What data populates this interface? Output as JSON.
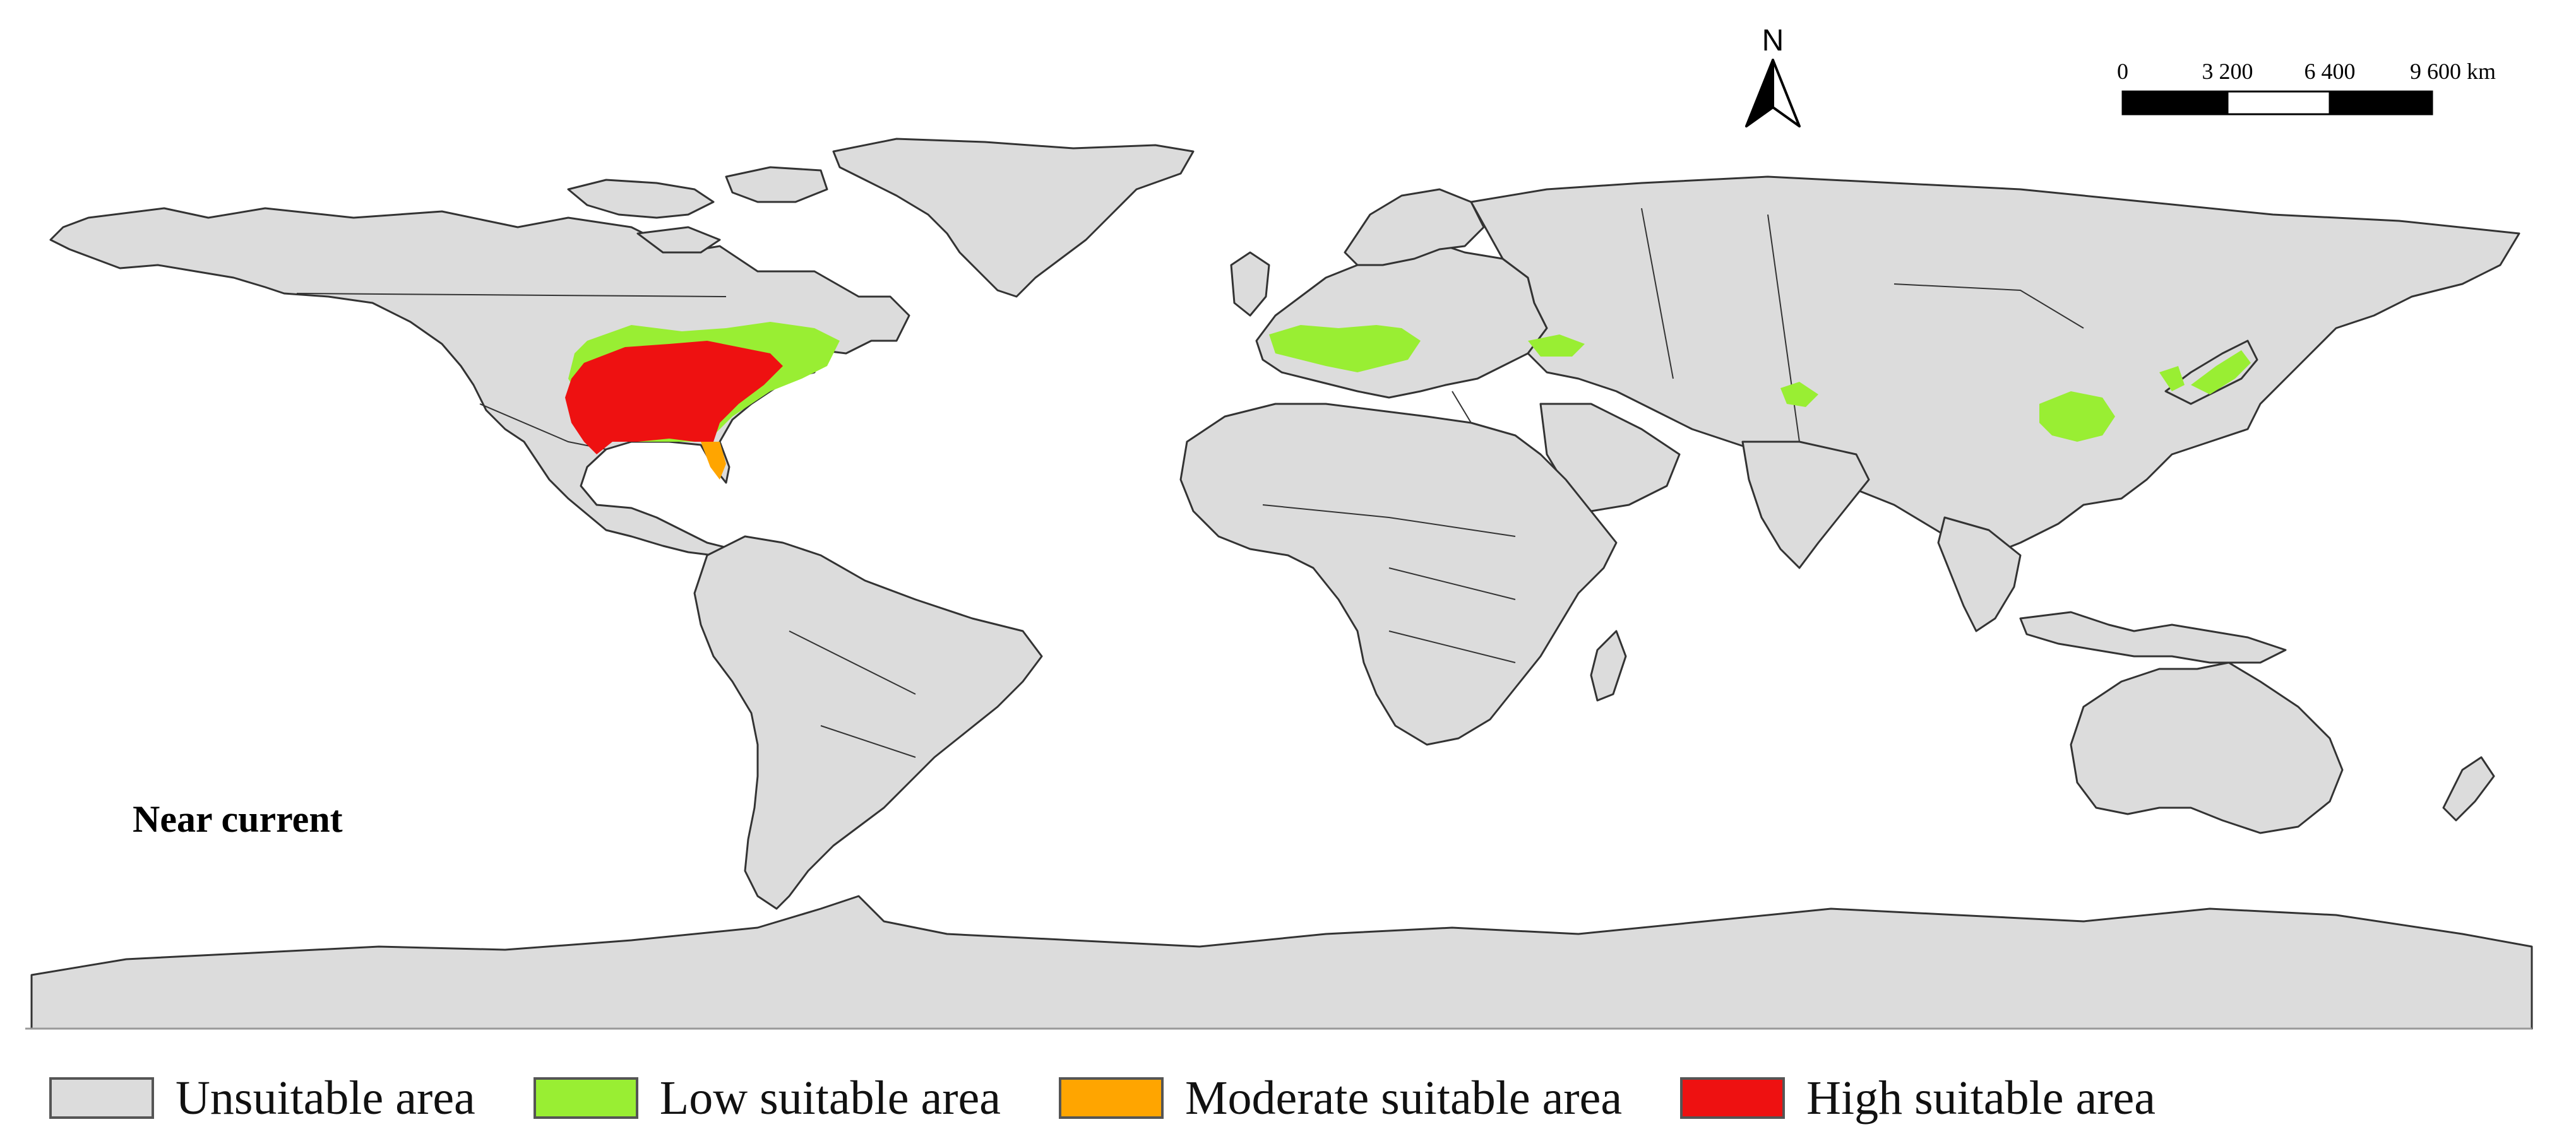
{
  "map": {
    "period_label": "Near current",
    "north_label": "N",
    "scale_bar": {
      "ticks": [
        "0",
        "3 200",
        "6 400",
        "9 600 km"
      ]
    },
    "colors": {
      "land": "#dcdcdc",
      "border": "#333333",
      "low": "#99ee33",
      "moderate": "#ffa500",
      "high": "#ee1111"
    }
  },
  "legend": {
    "items": [
      {
        "label": "Unsuitable area",
        "color": "#dcdcdc"
      },
      {
        "label": "Low suitable area",
        "color": "#99ee33"
      },
      {
        "label": "Moderate suitable area",
        "color": "#ffa500"
      },
      {
        "label": "High suitable area",
        "color": "#ee1111"
      }
    ]
  }
}
